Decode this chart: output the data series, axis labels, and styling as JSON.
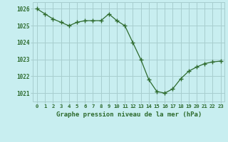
{
  "x": [
    0,
    1,
    2,
    3,
    4,
    5,
    6,
    7,
    8,
    9,
    10,
    11,
    12,
    13,
    14,
    15,
    16,
    17,
    18,
    19,
    20,
    21,
    22,
    23
  ],
  "y": [
    1026.0,
    1025.7,
    1025.4,
    1025.2,
    1025.0,
    1025.2,
    1025.3,
    1025.3,
    1025.3,
    1025.7,
    1025.3,
    1025.0,
    1024.0,
    1023.0,
    1021.8,
    1021.1,
    1021.0,
    1021.25,
    1021.85,
    1022.3,
    1022.55,
    1022.75,
    1022.85,
    1022.9
  ],
  "line_color": "#2d6a2d",
  "marker_color": "#2d6a2d",
  "bg_color": "#c8eef0",
  "grid_color": "#a8cece",
  "text_color": "#2d6a2d",
  "xlabel": "Graphe pression niveau de la mer (hPa)",
  "ylim_min": 1020.5,
  "ylim_max": 1026.4,
  "yticks": [
    1021,
    1022,
    1023,
    1024,
    1025,
    1026
  ],
  "xticks": [
    0,
    1,
    2,
    3,
    4,
    5,
    6,
    7,
    8,
    9,
    10,
    11,
    12,
    13,
    14,
    15,
    16,
    17,
    18,
    19,
    20,
    21,
    22,
    23
  ]
}
